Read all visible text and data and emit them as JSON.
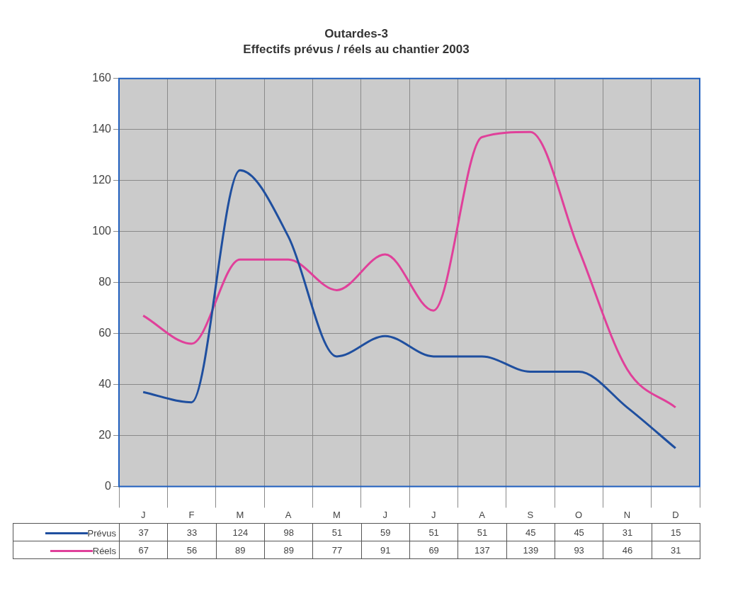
{
  "chart_data": {
    "type": "line",
    "title": "Outardes-3",
    "subtitle": "Effectifs prévus / réels au chantier 2003",
    "categories": [
      "J",
      "F",
      "M",
      "A",
      "M",
      "J",
      "J",
      "A",
      "S",
      "O",
      "N",
      "D"
    ],
    "series": [
      {
        "name": "Prévus",
        "color": "#1f4f9f",
        "values": [
          37,
          33,
          124,
          98,
          51,
          59,
          51,
          51,
          45,
          45,
          31,
          15
        ]
      },
      {
        "name": "Réels",
        "color": "#e0409a",
        "values": [
          67,
          56,
          89,
          89,
          77,
          91,
          69,
          137,
          139,
          93,
          46,
          31
        ]
      }
    ],
    "ylim": [
      0,
      160
    ],
    "yticks": [
      0,
      20,
      40,
      60,
      80,
      100,
      120,
      140,
      160
    ],
    "grid": true,
    "legend": "bottom left",
    "data_labels": true,
    "marker": "none",
    "line_style": "solid"
  }
}
